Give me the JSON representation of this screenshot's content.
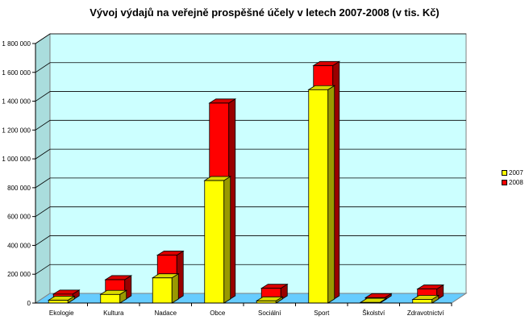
{
  "chart_data": {
    "type": "bar",
    "title": "Vývoj výdajů na veřejně prospěšné účely v letech 2007-2008 (v tis. Kč)",
    "xlabel": "",
    "ylabel": "",
    "categories": [
      "Ekologie",
      "Kultura",
      "Nadace",
      "Obce",
      "Sociální",
      "Sport",
      "Školství",
      "Zdravotnictví"
    ],
    "series": [
      {
        "name": "2007",
        "color": "#FFFF00",
        "values": [
          20000,
          60000,
          175000,
          850000,
          15000,
          1480000,
          5000,
          25000
        ]
      },
      {
        "name": "2008",
        "color": "#FF0000",
        "values": [
          40000,
          140000,
          310000,
          1365000,
          80000,
          1625000,
          15000,
          75000
        ]
      }
    ],
    "ylim": [
      0,
      1800000
    ],
    "yticks": [
      "0",
      "200 000",
      "400 000",
      "600 000",
      "800 000",
      "1 000 000",
      "1 200 000",
      "1 400 000",
      "1 600 000",
      "1 800 000"
    ],
    "grid": true,
    "legend_position": "right",
    "wall_color": "#CCFFFF",
    "floor_color": "#66CCFF"
  }
}
